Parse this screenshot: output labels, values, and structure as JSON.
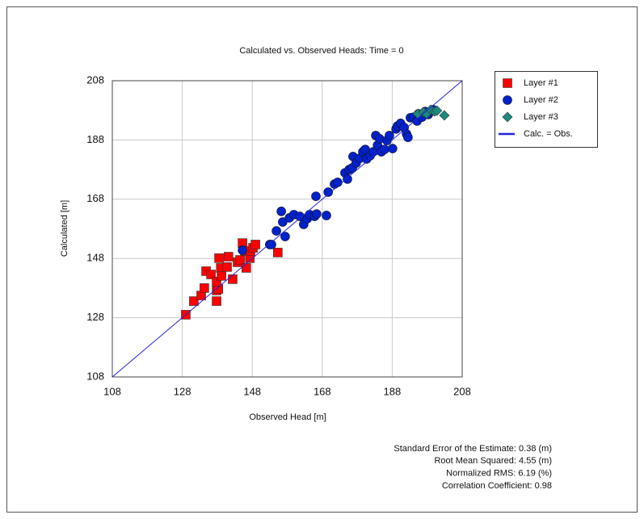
{
  "chart_data": {
    "type": "scatter",
    "title": "Calculated vs. Observed Heads: Time = 0",
    "x_label": "Observed Head [m]",
    "y_label": "Calculated [m]",
    "xlim": [
      108,
      208
    ],
    "ylim": [
      108,
      208
    ],
    "xticks": [
      108,
      128,
      148,
      168,
      188,
      208
    ],
    "yticks": [
      108,
      128,
      148,
      168,
      188,
      208
    ],
    "grid": true,
    "legend": "right",
    "series": [
      {
        "name": "Layer #1",
        "color": "#ff0000",
        "marker": "square",
        "x": [
          129.0,
          131.3,
          133.4,
          134.3,
          134.8,
          136.2,
          137.8,
          137.8,
          138.3,
          137.8,
          138.5,
          139.0,
          139.2,
          140.8,
          141.2,
          142.4,
          143.8,
          144.5,
          145.2,
          145.9,
          146.3,
          147.3,
          147.5,
          148.2,
          148.9,
          155.3
        ],
        "values": [
          129.0,
          133.6,
          135.5,
          138.0,
          143.7,
          142.6,
          133.6,
          137.2,
          137.7,
          140.2,
          148.1,
          144.8,
          142.1,
          145.1,
          148.6,
          141.0,
          146.7,
          147.5,
          153.2,
          150.5,
          144.8,
          148.1,
          150.5,
          151.6,
          152.7,
          150.0
        ]
      },
      {
        "name": "Layer #2",
        "color": "#0022cc",
        "marker": "circle",
        "x": [
          145.2,
          153.0,
          153.5,
          154.9,
          156.3,
          156.7,
          157.4,
          158.6,
          159.9,
          161.6,
          162.7,
          163.7,
          164.4,
          165.8,
          166.4,
          166.2,
          169.2,
          169.7,
          171.5,
          172.4,
          174.5,
          175.2,
          175.7,
          176.6,
          176.8,
          177.7,
          178.7,
          179.6,
          180.3,
          180.7,
          181.7,
          182.6,
          183.3,
          183.8,
          184.4,
          184.9,
          185.8,
          186.5,
          187.2,
          188.1,
          189.1,
          189.5,
          190.4,
          191.4,
          192.1,
          192.5,
          193.2,
          194.1,
          195.1,
          195.5,
          196.5,
          197.4,
          198.3,
          199.0,
          199.7
        ],
        "values": [
          150.8,
          152.7,
          152.7,
          157.3,
          163.9,
          160.3,
          155.4,
          161.7,
          162.8,
          162.2,
          159.5,
          161.4,
          162.8,
          162.2,
          163.0,
          169.0,
          162.5,
          170.4,
          173.1,
          173.7,
          176.9,
          174.8,
          178.0,
          178.6,
          182.4,
          180.2,
          181.8,
          184.0,
          184.8,
          181.6,
          182.7,
          184.0,
          189.5,
          186.2,
          188.4,
          184.0,
          184.8,
          187.8,
          189.5,
          185.1,
          191.7,
          192.7,
          193.6,
          192.2,
          190.0,
          188.9,
          195.5,
          195.7,
          194.4,
          196.8,
          195.7,
          197.6,
          196.6,
          197.6,
          198.2
        ]
      },
      {
        "name": "Layer #3",
        "color": "#1a8a80",
        "marker": "diamond",
        "x": [
          195.3,
          196.9,
          197.8,
          199.0,
          200.1,
          200.8,
          202.9
        ],
        "values": [
          196.8,
          197.4,
          196.8,
          198.2,
          197.6,
          197.9,
          196.3
        ]
      },
      {
        "name": "Calc. = Obs.",
        "color": "#2222dd",
        "marker": "line",
        "x": [
          108,
          208
        ],
        "values": [
          108,
          208
        ]
      }
    ],
    "statistics": [
      "Standard Error of the Estimate: 0.38 (m)",
      "Root Mean Squared: 4.55 (m)",
      "Normalized RMS: 6.19 (%)",
      "Correlation Coefficient: 0.98"
    ]
  }
}
